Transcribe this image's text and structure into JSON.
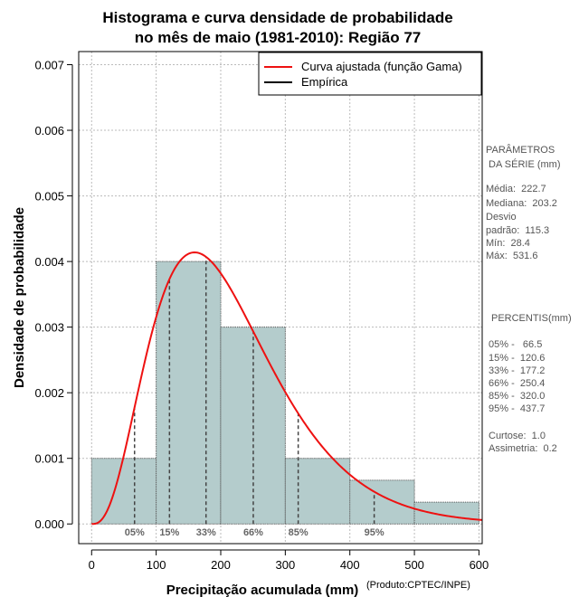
{
  "title": [
    "Histograma e curva densidade de probabilidade",
    "no mês de maio (1981-2010): Região 77"
  ],
  "credit": "(Produto:CPTEC/INPE)",
  "colors": {
    "bar_fill": "#b4cccc",
    "bar_stroke": "#555555",
    "curve": "#ee1111",
    "grid": "#bbbbbb",
    "percentile_line": "#444444",
    "percentile_label": "#666666",
    "panel_text": "#555555"
  },
  "legend": {
    "items": [
      {
        "label": "Curva ajustada (função Gama)",
        "color": "#ee1111"
      },
      {
        "label": "Empírica",
        "color": "#000000"
      }
    ]
  },
  "params_panel": {
    "header": [
      "PARÂMETROS",
      " DA SÉRIE (mm)"
    ],
    "lines": [
      "Média:  222.7",
      "Mediana:  203.2",
      "Desvio",
      "padrão:  115.3",
      "Mín:  28.4",
      "Máx:  531.6"
    ]
  },
  "percentiles_panel": {
    "header": "PERCENTIS(mm)",
    "lines": [
      "05% -   66.5",
      "15% -  120.6",
      "33% -  177.2",
      "66% -  250.4",
      "85% -  320.0",
      "95% -  437.7"
    ]
  },
  "stats_panel": {
    "lines": [
      "Curtose:  1.0",
      "Assimetria:  0.2"
    ]
  },
  "chart_data": {
    "type": "bar",
    "subtype": "histogram",
    "xlabel": "Precipitação acumulada (mm)",
    "ylabel": "Densidade de probabilidade",
    "xlim": [
      -20,
      605
    ],
    "ylim": [
      -0.0003,
      0.0072
    ],
    "grid": true,
    "legend_position": "top-right",
    "x_ticks": [
      0,
      100,
      200,
      300,
      400,
      500,
      600
    ],
    "x_tick_labels": [
      "0",
      "100",
      "200",
      "300",
      "400",
      "500",
      "600"
    ],
    "y_ticks": [
      0.0,
      0.001,
      0.002,
      0.003,
      0.004,
      0.005,
      0.006,
      0.007
    ],
    "y_tick_labels": [
      "0.000",
      "0.001",
      "0.002",
      "0.003",
      "0.004",
      "0.005",
      "0.006",
      "0.007"
    ],
    "bins": [
      {
        "x0": 0,
        "x1": 100,
        "density": 0.001
      },
      {
        "x0": 100,
        "x1": 200,
        "density": 0.004
      },
      {
        "x0": 200,
        "x1": 300,
        "density": 0.003
      },
      {
        "x0": 300,
        "x1": 400,
        "density": 0.001
      },
      {
        "x0": 400,
        "x1": 500,
        "density": 0.000667
      },
      {
        "x0": 500,
        "x1": 600,
        "density": 0.000333
      }
    ],
    "gamma_fit": {
      "shape": 3.9,
      "scale": 55.0,
      "x_range": [
        0,
        605
      ]
    },
    "percentiles": [
      {
        "label": "05%",
        "value": 66.5
      },
      {
        "label": "15%",
        "value": 120.6
      },
      {
        "label": "33%",
        "value": 177.2
      },
      {
        "label": "66%",
        "value": 250.4
      },
      {
        "label": "85%",
        "value": 320.0
      },
      {
        "label": "95%",
        "value": 437.7
      }
    ]
  }
}
